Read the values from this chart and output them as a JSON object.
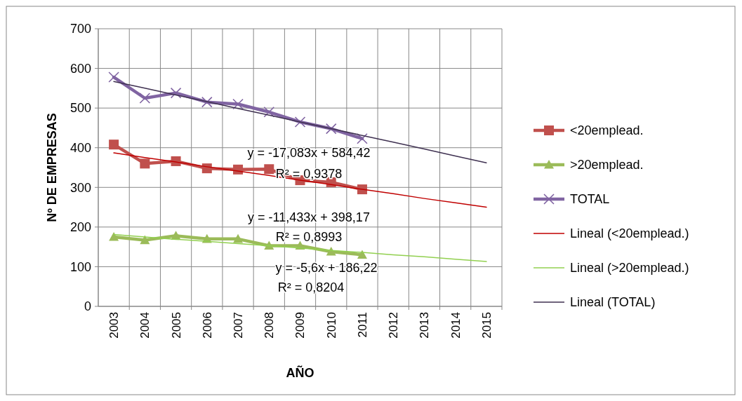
{
  "chart_data": {
    "type": "line",
    "xlabel": "AÑO",
    "ylabel": "Nº DE EMPRESAS",
    "categories": [
      "2003",
      "2004",
      "2005",
      "2006",
      "2007",
      "2008",
      "2009",
      "2010",
      "2011",
      "2012",
      "2013",
      "2014",
      "2015"
    ],
    "ylim": [
      0,
      700
    ],
    "yticks": [
      0,
      100,
      200,
      300,
      400,
      500,
      600,
      700
    ],
    "grid": true,
    "legend": "right",
    "series": [
      {
        "name": "<20emplead.",
        "color": "#c0504d",
        "marker": "square",
        "values": [
          408,
          360,
          366,
          348,
          345,
          346,
          318,
          313,
          295,
          null,
          null,
          null,
          null
        ]
      },
      {
        "name": ">20emplead.",
        "color": "#9bbb59",
        "marker": "triangle",
        "values": [
          175,
          167,
          178,
          170,
          170,
          153,
          153,
          138,
          130,
          null,
          null,
          null,
          null
        ]
      },
      {
        "name": "TOTAL",
        "color": "#8064a2",
        "marker": "cross",
        "values": [
          578,
          525,
          538,
          515,
          510,
          490,
          465,
          448,
          423,
          null,
          null,
          null,
          null
        ]
      },
      {
        "name": "Lineal (<20emplead.)",
        "color": "#c00000",
        "marker": "none",
        "values": [
          387,
          375,
          364,
          352,
          341,
          330,
          318,
          307,
          295,
          284,
          272,
          261,
          250
        ]
      },
      {
        "name": "Lineal (>20emplead.)",
        "color": "#92d050",
        "marker": "none",
        "values": [
          181,
          175,
          169,
          164,
          158,
          153,
          147,
          141,
          136,
          130,
          125,
          119,
          113
        ]
      },
      {
        "name": "Lineal (TOTAL)",
        "color": "#3f3151",
        "marker": "none",
        "values": [
          567,
          550,
          533,
          516,
          499,
          482,
          465,
          448,
          431,
          414,
          397,
          379,
          362
        ]
      }
    ],
    "annotations": [
      "y = -17,083x + 584,42",
      "R² = 0,9378",
      "y = -11,433x + 398,17",
      "R² = 0,8993",
      "y = -5,6x + 186,22",
      "R² = 0,8204"
    ]
  }
}
